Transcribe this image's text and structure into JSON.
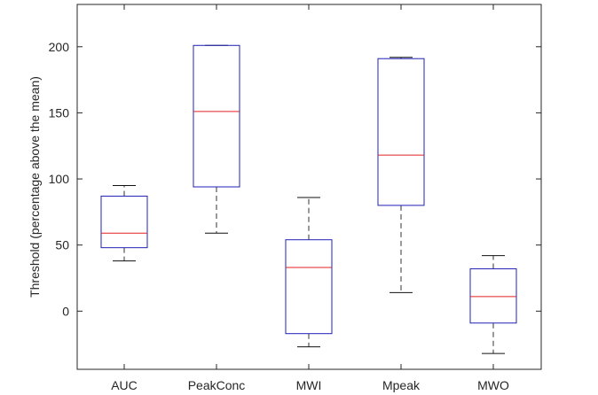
{
  "chart_data": {
    "type": "boxplot",
    "title": "",
    "xlabel": "",
    "ylabel": "Threshold (percentage above the mean)",
    "ylim": [
      -44,
      232
    ],
    "yticks": [
      0,
      50,
      100,
      150,
      200
    ],
    "categories": [
      "AUC",
      "PeakConc",
      "MWI",
      "Mpeak",
      "MWO"
    ],
    "boxes": [
      {
        "name": "AUC",
        "whisker_low": 38,
        "q1": 48,
        "median": 59,
        "q3": 87,
        "whisker_high": 95
      },
      {
        "name": "PeakConc",
        "whisker_low": 59,
        "q1": 94,
        "median": 151,
        "q3": 201,
        "whisker_high": 201
      },
      {
        "name": "MWI",
        "whisker_low": -27,
        "q1": -17,
        "median": 33,
        "q3": 54,
        "whisker_high": 86
      },
      {
        "name": "Mpeak",
        "whisker_low": 14,
        "q1": 80,
        "median": 118,
        "q3": 191,
        "whisker_high": 192
      },
      {
        "name": "MWO",
        "whisker_low": -32,
        "q1": -9,
        "median": 11,
        "q3": 32,
        "whisker_high": 42
      }
    ],
    "grid": false,
    "colors": {
      "box": "#1f1fb8",
      "median": "#e02020",
      "whisker": "#333333",
      "axis": "#262626"
    }
  }
}
